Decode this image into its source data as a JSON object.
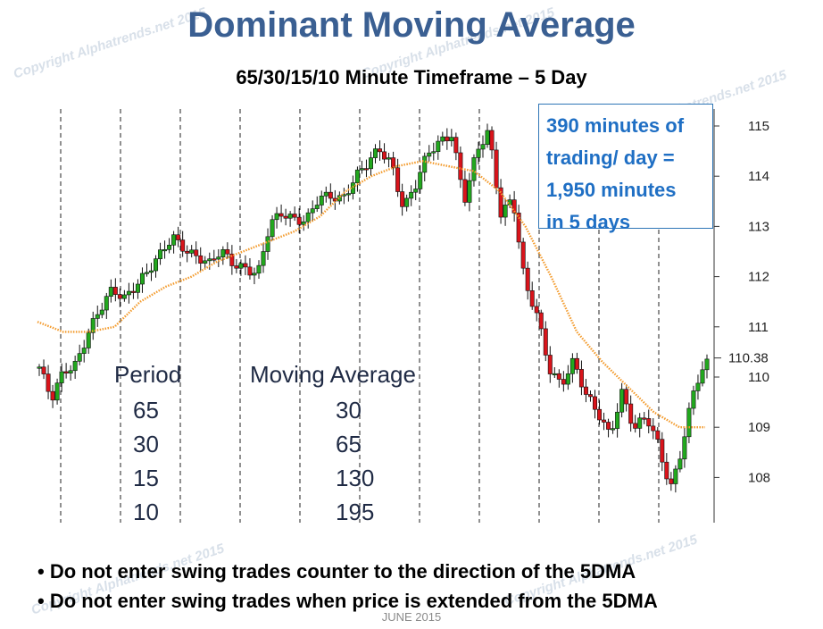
{
  "title": "Dominant Moving Average",
  "subtitle": "65/30/15/10 Minute Timeframe – 5 Day",
  "watermark_text": "Copyright Alphatrends.net 2015",
  "callout_lines": [
    "390 minutes of",
    "trading/ day =",
    "1,950  minutes",
    "in 5 days"
  ],
  "table": {
    "headers": [
      "Period",
      "Moving Average"
    ],
    "rows": [
      [
        "65",
        "30"
      ],
      [
        "30",
        "65"
      ],
      [
        "15",
        "130"
      ],
      [
        "10",
        "195"
      ]
    ]
  },
  "bullets": [
    "Do not enter swing trades counter to the direction of the 5DMA",
    "Do not enter swing trades when price is extended from the 5DMA"
  ],
  "footer": "JUNE 2015",
  "colors": {
    "title": "#3a5f92",
    "up": "#22a81e",
    "down": "#d9141b",
    "ma": "#f39a2b",
    "callout": "#1f6fc4"
  },
  "chart_data": {
    "type": "candlestick",
    "y_ticks": [
      108,
      109,
      110,
      111,
      112,
      113,
      114,
      115
    ],
    "ylim": [
      107.3,
      115.5
    ],
    "last_price_label": "110.38",
    "last_price": 110.38,
    "session_separators": 11,
    "close_path": [
      110.2,
      109.5,
      110.1,
      110.3,
      110.9,
      111.3,
      111.7,
      111.6,
      111.9,
      112.1,
      112.4,
      112.8,
      112.6,
      112.4,
      112.2,
      112.5,
      112.3,
      112.2,
      112.0,
      113.0,
      113.3,
      113.2,
      113.1,
      113.5,
      113.6,
      113.6,
      114.0,
      114.2,
      114.5,
      114.3,
      113.4,
      113.8,
      114.4,
      114.7,
      114.9,
      113.5,
      114.4,
      114.9,
      113.3,
      113.6,
      111.8,
      111.2,
      110.2,
      109.9,
      110.3,
      109.6,
      109.3,
      108.9,
      109.7,
      108.9,
      109.2,
      108.7,
      107.8,
      108.6,
      109.8,
      110.3
    ],
    "ma_path": [
      111.1,
      110.9,
      110.9,
      111.0,
      111.5,
      111.8,
      112.0,
      112.3,
      112.5,
      112.7,
      112.9,
      113.2,
      113.7,
      114.0,
      114.2,
      114.3,
      114.2,
      114.1,
      113.7,
      113.0,
      112.0,
      110.9,
      110.3,
      109.8,
      109.3,
      109.0,
      109.0
    ]
  }
}
